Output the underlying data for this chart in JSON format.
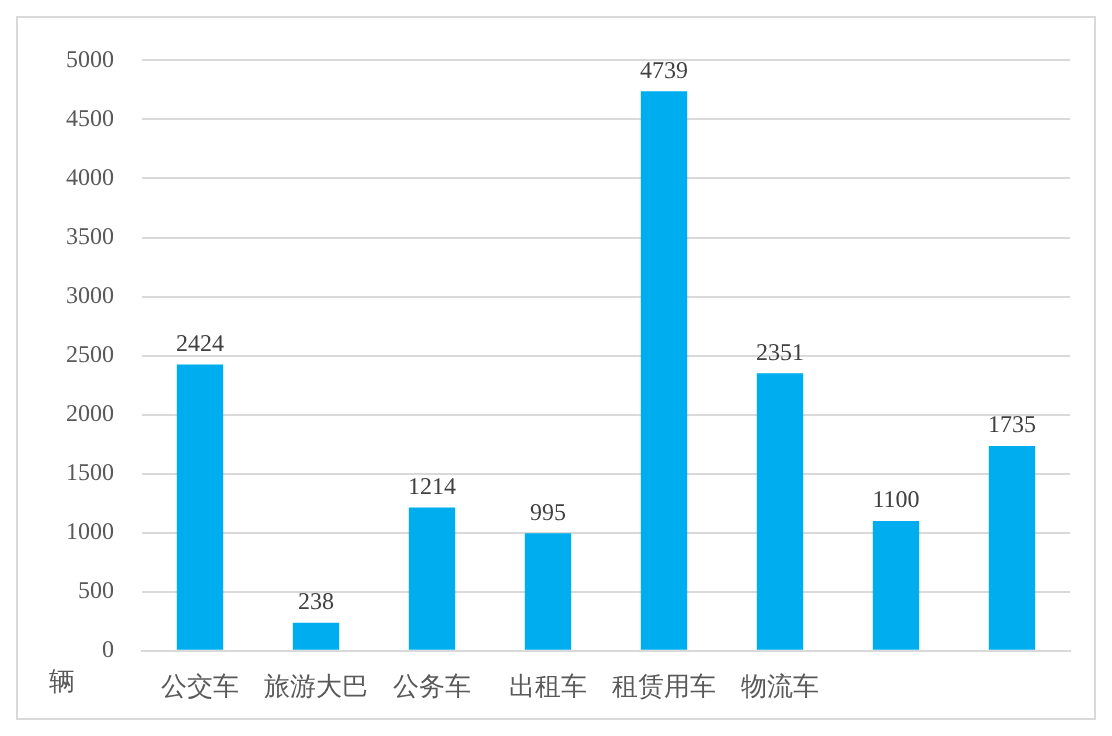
{
  "chart_data": {
    "type": "bar",
    "ylabel": "辆",
    "categories": [
      "公交车",
      "旅游大巴",
      "公务车",
      "出租车",
      "租赁用车",
      "物流车",
      null,
      null
    ],
    "values": [
      2424,
      238,
      1214,
      995,
      4739,
      2351,
      1100,
      1735
    ],
    "color": "#00aeef",
    "data_labels": true,
    "ylim": [
      0,
      5000
    ],
    "yticks": [
      0,
      500,
      1000,
      1500,
      2000,
      2500,
      3000,
      3500,
      4000,
      4500,
      5000
    ],
    "grid": "y",
    "legend": false
  }
}
